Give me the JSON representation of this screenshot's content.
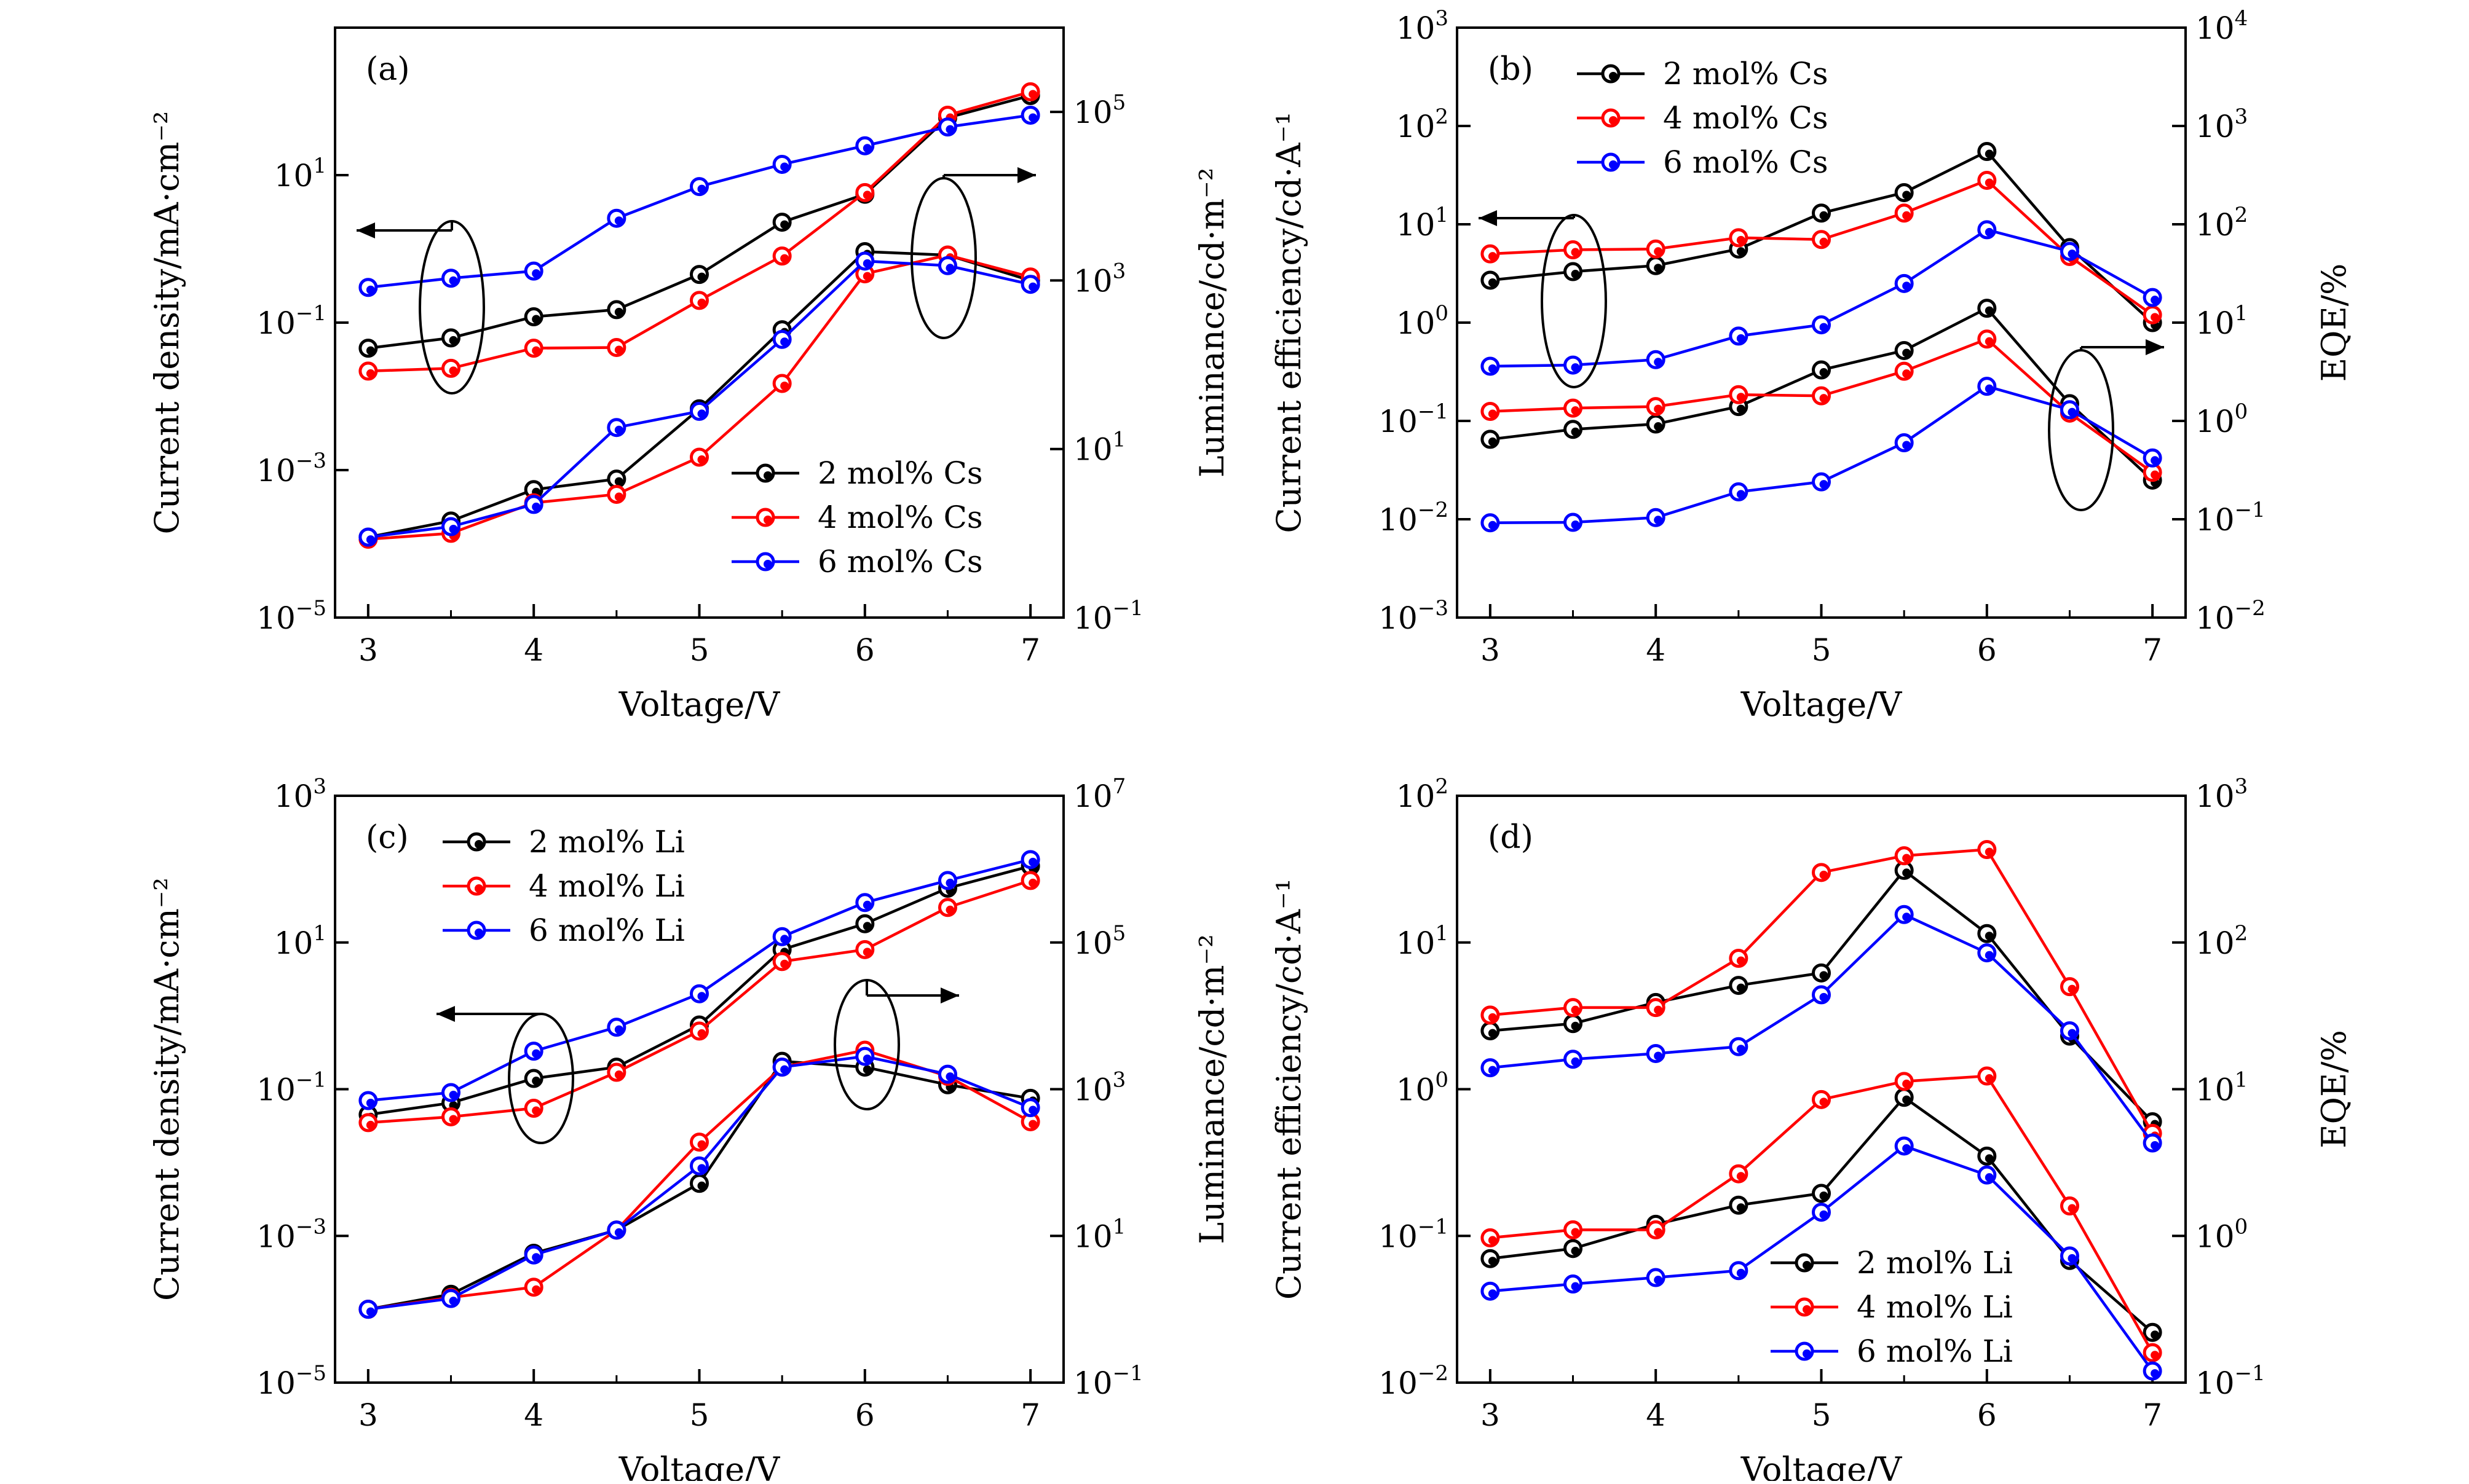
{
  "figure": {
    "panels": [
      {
        "id": "a",
        "tag": "(a)",
        "xlabel": "Voltage/V",
        "ylabel_left": "Current density/mA·cm⁻²",
        "ylabel_right": "Luminance/cd·m⁻²",
        "legend_position": "lower-right",
        "left_ticks": [
          {
            "v": 1e-05,
            "base": "10",
            "exp": "−5"
          },
          {
            "v": 0.001,
            "base": "10",
            "exp": "−3"
          },
          {
            "v": 0.1,
            "base": "10",
            "exp": "−1"
          },
          {
            "v": 10,
            "base": "10",
            "exp": "1"
          }
        ],
        "right_ticks": [
          {
            "v": 0.1,
            "base": "10",
            "exp": "−1"
          },
          {
            "v": 10,
            "base": "10",
            "exp": "1"
          },
          {
            "v": 1000,
            "base": "10",
            "exp": "3"
          },
          {
            "v": 100000,
            "base": "10",
            "exp": "5"
          }
        ]
      },
      {
        "id": "b",
        "tag": "(b)",
        "xlabel": "Voltage/V",
        "ylabel_left": "Current efficiency/cd·A⁻¹",
        "ylabel_right": "EQE/%",
        "legend_position": "top-left",
        "left_ticks": [
          {
            "v": 0.001,
            "base": "10",
            "exp": "−3"
          },
          {
            "v": 0.01,
            "base": "10",
            "exp": "−2"
          },
          {
            "v": 0.1,
            "base": "10",
            "exp": "−1"
          },
          {
            "v": 1,
            "base": "10",
            "exp": "0"
          },
          {
            "v": 10,
            "base": "10",
            "exp": "1"
          },
          {
            "v": 100,
            "base": "10",
            "exp": "2"
          },
          {
            "v": 1000,
            "base": "10",
            "exp": "3"
          }
        ],
        "right_ticks": [
          {
            "v": 0.01,
            "base": "10",
            "exp": "−2"
          },
          {
            "v": 0.1,
            "base": "10",
            "exp": "−1"
          },
          {
            "v": 1,
            "base": "10",
            "exp": "0"
          },
          {
            "v": 10,
            "base": "10",
            "exp": "1"
          },
          {
            "v": 100,
            "base": "10",
            "exp": "2"
          },
          {
            "v": 1000,
            "base": "10",
            "exp": "3"
          },
          {
            "v": 10000,
            "base": "10",
            "exp": "4"
          }
        ]
      },
      {
        "id": "c",
        "tag": "(c)",
        "xlabel": "Voltage/V",
        "ylabel_left": "Current density/mA·cm⁻²",
        "ylabel_right": "Luminance/cd·m⁻²",
        "legend_position": "top-left",
        "left_ticks": [
          {
            "v": 1e-05,
            "base": "10",
            "exp": "−5"
          },
          {
            "v": 0.001,
            "base": "10",
            "exp": "−3"
          },
          {
            "v": 0.1,
            "base": "10",
            "exp": "−1"
          },
          {
            "v": 10,
            "base": "10",
            "exp": "1"
          },
          {
            "v": 1000,
            "base": "10",
            "exp": "3"
          }
        ],
        "right_ticks": [
          {
            "v": 0.1,
            "base": "10",
            "exp": "−1"
          },
          {
            "v": 10,
            "base": "10",
            "exp": "1"
          },
          {
            "v": 1000,
            "base": "10",
            "exp": "3"
          },
          {
            "v": 100000,
            "base": "10",
            "exp": "5"
          },
          {
            "v": 10000000,
            "base": "10",
            "exp": "7"
          }
        ]
      },
      {
        "id": "d",
        "tag": "(d)",
        "xlabel": "Voltage/V",
        "ylabel_left": "Current efficiency/cd·A⁻¹",
        "ylabel_right": "EQE/%",
        "legend_position": "lower-right",
        "left_ticks": [
          {
            "v": 0.01,
            "base": "10",
            "exp": "−2"
          },
          {
            "v": 0.1,
            "base": "10",
            "exp": "−1"
          },
          {
            "v": 1,
            "base": "10",
            "exp": "0"
          },
          {
            "v": 10,
            "base": "10",
            "exp": "1"
          },
          {
            "v": 100,
            "base": "10",
            "exp": "2"
          }
        ],
        "right_ticks": [
          {
            "v": 0.1,
            "base": "10",
            "exp": "−1"
          },
          {
            "v": 1,
            "base": "10",
            "exp": "0"
          },
          {
            "v": 10,
            "base": "10",
            "exp": "1"
          },
          {
            "v": 100,
            "base": "10",
            "exp": "2"
          },
          {
            "v": 1000,
            "base": "10",
            "exp": "3"
          }
        ]
      }
    ],
    "x_ticks": [
      "3",
      "4",
      "5",
      "6",
      "7"
    ]
  },
  "chart_data": [
    {
      "type": "line",
      "panel": "a",
      "x": [
        3,
        3.5,
        4,
        4.5,
        5,
        5.5,
        6,
        6.5,
        7
      ],
      "xlim": [
        2.8,
        7.2
      ],
      "ylim_left": [
        1e-05,
        1000
      ],
      "ylim_right": [
        0.1,
        1000000
      ],
      "yscale": "log",
      "grid": false,
      "series": [
        {
          "name": "2 mol% Cs",
          "axis": "left",
          "color": "#000000",
          "values": [
            0.045,
            0.062,
            0.12,
            0.15,
            0.45,
            2.3,
            5.5,
            60,
            120
          ]
        },
        {
          "name": "4 mol% Cs",
          "axis": "left",
          "color": "#ff0000",
          "values": [
            0.022,
            0.024,
            0.045,
            0.046,
            0.2,
            0.8,
            5.8,
            65,
            135
          ]
        },
        {
          "name": "6 mol% Cs",
          "axis": "left",
          "color": "#0000ff",
          "values": [
            0.3,
            0.4,
            0.5,
            2.6,
            7.0,
            14.0,
            25.0,
            45.0,
            65.0
          ]
        },
        {
          "name": "2 mol% Cs",
          "axis": "right",
          "color": "#000000",
          "values": [
            0.9,
            1.4,
            3.3,
            4.4,
            30,
            260,
            2200,
            2000,
            1000
          ]
        },
        {
          "name": "4 mol% Cs",
          "axis": "right",
          "color": "#ff0000",
          "values": [
            0.85,
            1.0,
            2.3,
            2.9,
            8,
            60,
            1200,
            2000,
            1100
          ]
        },
        {
          "name": "6 mol% Cs",
          "axis": "right",
          "color": "#0000ff",
          "values": [
            0.9,
            1.2,
            2.2,
            18,
            28,
            200,
            1700,
            1500,
            900
          ]
        }
      ]
    },
    {
      "type": "line",
      "panel": "b",
      "x": [
        3,
        3.5,
        4,
        4.5,
        5,
        5.5,
        6,
        6.5,
        7
      ],
      "xlim": [
        2.8,
        7.2
      ],
      "ylim_left": [
        0.001,
        1000
      ],
      "ylim_right": [
        0.01,
        10000
      ],
      "yscale": "log",
      "grid": false,
      "series": [
        {
          "name": "2 mol% Cs",
          "axis": "left",
          "color": "#000000",
          "values": [
            2.7,
            3.3,
            3.8,
            5.6,
            13.0,
            21.0,
            55.0,
            5.8,
            1.0
          ]
        },
        {
          "name": "4 mol% Cs",
          "axis": "left",
          "color": "#ff0000",
          "values": [
            5.0,
            5.5,
            5.6,
            7.3,
            7.0,
            13.0,
            28.0,
            4.7,
            1.2
          ]
        },
        {
          "name": "6 mol% Cs",
          "axis": "left",
          "color": "#0000ff",
          "values": [
            0.36,
            0.37,
            0.42,
            0.73,
            0.95,
            2.5,
            8.8,
            5.3,
            1.8
          ]
        },
        {
          "name": "2 mol% Cs",
          "axis": "right",
          "color": "#000000",
          "values": [
            0.65,
            0.82,
            0.93,
            1.4,
            3.3,
            5.2,
            14.0,
            1.5,
            0.25
          ]
        },
        {
          "name": "4 mol% Cs",
          "axis": "right",
          "color": "#ff0000",
          "values": [
            1.25,
            1.35,
            1.4,
            1.85,
            1.8,
            3.2,
            6.8,
            1.2,
            0.3
          ]
        },
        {
          "name": "6 mol% Cs",
          "axis": "right",
          "color": "#0000ff",
          "values": [
            0.092,
            0.093,
            0.104,
            0.19,
            0.24,
            0.6,
            2.25,
            1.3,
            0.42
          ]
        }
      ]
    },
    {
      "type": "line",
      "panel": "c",
      "x": [
        3,
        3.5,
        4,
        4.5,
        5,
        5.5,
        6,
        6.5,
        7
      ],
      "xlim": [
        2.8,
        7.2
      ],
      "ylim_left": [
        1e-05,
        1000
      ],
      "ylim_right": [
        0.1,
        10000000
      ],
      "yscale": "log",
      "grid": false,
      "series": [
        {
          "name": "2 mol% Li",
          "axis": "left",
          "color": "#000000",
          "values": [
            0.045,
            0.065,
            0.14,
            0.2,
            0.75,
            8.0,
            18.0,
            55.0,
            110.0
          ]
        },
        {
          "name": "4 mol% Li",
          "axis": "left",
          "color": "#ff0000",
          "values": [
            0.035,
            0.042,
            0.055,
            0.17,
            0.62,
            5.5,
            8.0,
            30.0,
            70.0
          ]
        },
        {
          "name": "6 mol% Li",
          "axis": "left",
          "color": "#0000ff",
          "values": [
            0.07,
            0.09,
            0.33,
            0.7,
            2.0,
            12.0,
            35.0,
            70.0,
            135.0
          ]
        },
        {
          "name": "2 mol% Li",
          "axis": "right",
          "color": "#000000",
          "values": [
            1.0,
            1.6,
            5.8,
            12.0,
            52.0,
            2400,
            2000,
            1150,
            750
          ]
        },
        {
          "name": "4 mol% Li",
          "axis": "right",
          "color": "#ff0000",
          "values": [
            1.0,
            1.45,
            2.0,
            12.0,
            190,
            2000,
            3400,
            1500,
            360
          ]
        },
        {
          "name": "6 mol% Li",
          "axis": "right",
          "color": "#0000ff",
          "values": [
            1.0,
            1.4,
            5.5,
            12.0,
            90,
            2000,
            2800,
            1600,
            560
          ]
        }
      ]
    },
    {
      "type": "line",
      "panel": "d",
      "x": [
        3,
        3.5,
        4,
        4.5,
        5,
        5.5,
        6,
        6.5,
        7
      ],
      "xlim": [
        2.8,
        7.2
      ],
      "ylim_left": [
        0.01,
        100
      ],
      "ylim_right": [
        0.1,
        1000
      ],
      "yscale": "log",
      "grid": false,
      "series": [
        {
          "name": "2 mol% Li",
          "axis": "left",
          "color": "#000000",
          "values": [
            2.5,
            2.8,
            3.9,
            5.1,
            6.2,
            31.0,
            11.5,
            2.3,
            0.6
          ]
        },
        {
          "name": "4 mol% Li",
          "axis": "left",
          "color": "#ff0000",
          "values": [
            3.2,
            3.6,
            3.6,
            7.8,
            30.0,
            39.0,
            43.0,
            5.0,
            0.5
          ]
        },
        {
          "name": "6 mol% Li",
          "axis": "left",
          "color": "#0000ff",
          "values": [
            1.4,
            1.6,
            1.75,
            1.95,
            4.4,
            15.5,
            8.5,
            2.5,
            0.43
          ]
        },
        {
          "name": "2 mol% Li",
          "axis": "right",
          "color": "#000000",
          "values": [
            0.7,
            0.82,
            1.2,
            1.62,
            1.95,
            8.8,
            3.5,
            0.68,
            0.22
          ]
        },
        {
          "name": "4 mol% Li",
          "axis": "right",
          "color": "#ff0000",
          "values": [
            0.97,
            1.1,
            1.1,
            2.65,
            8.5,
            11.3,
            12.3,
            1.6,
            0.16
          ]
        },
        {
          "name": "6 mol% Li",
          "axis": "right",
          "color": "#0000ff",
          "values": [
            0.42,
            0.47,
            0.52,
            0.58,
            1.45,
            4.1,
            2.6,
            0.73,
            0.12
          ]
        }
      ]
    }
  ],
  "legends": [
    {
      "panel": "a",
      "items": [
        {
          "label": "2 mol% Cs",
          "color": "#000000"
        },
        {
          "label": "4 mol% Cs",
          "color": "#ff0000"
        },
        {
          "label": "6 mol% Cs",
          "color": "#0000ff"
        }
      ]
    },
    {
      "panel": "b",
      "items": [
        {
          "label": "2 mol% Cs",
          "color": "#000000"
        },
        {
          "label": "4 mol% Cs",
          "color": "#ff0000"
        },
        {
          "label": "6 mol% Cs",
          "color": "#0000ff"
        }
      ]
    },
    {
      "panel": "c",
      "items": [
        {
          "label": "2 mol% Li",
          "color": "#000000"
        },
        {
          "label": "4 mol% Li",
          "color": "#ff0000"
        },
        {
          "label": "6 mol% Li",
          "color": "#0000ff"
        }
      ]
    },
    {
      "panel": "d",
      "items": [
        {
          "label": "2 mol% Li",
          "color": "#000000"
        },
        {
          "label": "4 mol% Li",
          "color": "#ff0000"
        },
        {
          "label": "6 mol% Li",
          "color": "#0000ff"
        }
      ]
    }
  ]
}
